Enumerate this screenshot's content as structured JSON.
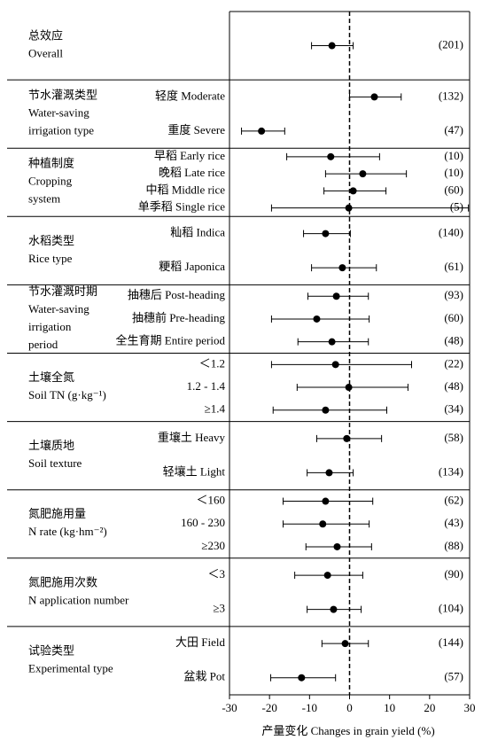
{
  "chart_data": {
    "type": "forest",
    "x_label": "产量变化 Changes in grain yield (%)",
    "xlim": [
      -30,
      30
    ],
    "xticks": [
      -30,
      -20,
      -10,
      0,
      10,
      20,
      30
    ],
    "reference_line": 0,
    "groups": [
      {
        "title": [
          "总效应",
          "Overall"
        ],
        "rows": [
          {
            "mean": -4.4,
            "ci": [
              -9.5,
              0.9
            ],
            "n": "(201)"
          }
        ]
      },
      {
        "title": [
          "节水灌溉类型",
          "Water-saving",
          "irrigation type"
        ],
        "rows": [
          {
            "label": "轻度 Moderate",
            "mean": 6.2,
            "ci": [
              0,
              12.9
            ],
            "n": "(132)"
          },
          {
            "label": "重度 Severe",
            "mean": -22,
            "ci": [
              -27,
              -16.2
            ],
            "n": "(47)"
          }
        ]
      },
      {
        "title": [
          "种植制度",
          "Cropping",
          "system"
        ],
        "rows": [
          {
            "label": "早稻 Early rice",
            "mean": -4.7,
            "ci": [
              -15.7,
              7.5
            ],
            "n": "(10)"
          },
          {
            "label": "晚稻 Late rice",
            "mean": 3.3,
            "ci": [
              -6,
              14.2
            ],
            "n": "(10)"
          },
          {
            "label": "中稻 Middle rice",
            "mean": 0.9,
            "ci": [
              -6.4,
              9.1
            ],
            "n": "(60)"
          },
          {
            "label": "单季稻 Single rice",
            "mean": -0.2,
            "ci": [
              -19.5,
              29.7
            ],
            "n": "(5)"
          }
        ]
      },
      {
        "title": [
          "水稻类型",
          "Rice type"
        ],
        "rows": [
          {
            "label": "籼稻 Indica",
            "mean": -6,
            "ci": [
              -11.5,
              0.2
            ],
            "n": "(140)"
          },
          {
            "label": "粳稻 Japonica",
            "mean": -1.8,
            "ci": [
              -9.5,
              6.7
            ],
            "n": "(61)"
          }
        ]
      },
      {
        "title": [
          "节水灌溉时期",
          "Water-saving",
          "irrigation",
          "period"
        ],
        "rows": [
          {
            "label": "抽穗后 Post-heading",
            "mean": -3.3,
            "ci": [
              -10.4,
              4.7
            ],
            "n": "(93)"
          },
          {
            "label": "抽穗前 Pre-heading",
            "mean": -8.2,
            "ci": [
              -19.5,
              4.9
            ],
            "n": "(60)"
          },
          {
            "label": "全生育期 Entire period",
            "mean": -4.4,
            "ci": [
              -12.9,
              4.7
            ],
            "n": "(48)"
          }
        ]
      },
      {
        "title": [
          "土壤全氮",
          "Soil TN (g·kg⁻¹)"
        ],
        "rows": [
          {
            "label": "＜1.2",
            "mean": -3.5,
            "ci": [
              -19.5,
              15.5
            ],
            "n": "(22)"
          },
          {
            "label": "1.2 - 1.4",
            "mean": -0.2,
            "ci": [
              -13.1,
              14.6
            ],
            "n": "(48)"
          },
          {
            "label": "≥1.4",
            "mean": -6,
            "ci": [
              -19.1,
              9.3
            ],
            "n": "(34)"
          }
        ]
      },
      {
        "title": [
          "土壤质地",
          "Soil texture"
        ],
        "rows": [
          {
            "label": "重壤土 Heavy",
            "mean": -0.7,
            "ci": [
              -8.2,
              8
            ],
            "n": "(58)"
          },
          {
            "label": "轻壤土 Light",
            "mean": -5.1,
            "ci": [
              -10.6,
              0.9
            ],
            "n": "(134)"
          }
        ]
      },
      {
        "title": [
          "氮肥施用量",
          "N rate (kg·hm⁻²)"
        ],
        "rows": [
          {
            "label": "＜160",
            "mean": -6,
            "ci": [
              -16.6,
              5.8
            ],
            "n": "(62)"
          },
          {
            "label": "160 - 230",
            "mean": -6.7,
            "ci": [
              -16.6,
              4.9
            ],
            "n": "(43)"
          },
          {
            "label": "≥230",
            "mean": -3.1,
            "ci": [
              -10.9,
              5.5
            ],
            "n": "(88)"
          }
        ]
      },
      {
        "title": [
          "氮肥施用次数",
          "N application number"
        ],
        "rows": [
          {
            "label": "＜3",
            "mean": -5.5,
            "ci": [
              -13.7,
              3.3
            ],
            "n": "(90)"
          },
          {
            "label": "≥3",
            "mean": -4,
            "ci": [
              -10.6,
              2.9
            ],
            "n": "(104)"
          }
        ]
      },
      {
        "title": [
          "试验类型",
          "Experimental type"
        ],
        "rows": [
          {
            "label": "大田 Field",
            "mean": -1.1,
            "ci": [
              -6.9,
              4.7
            ],
            "n": "(144)"
          },
          {
            "label": "盆栽 Pot",
            "mean": -12,
            "ci": [
              -19.7,
              -3.5
            ],
            "n": "(57)"
          }
        ]
      }
    ]
  }
}
